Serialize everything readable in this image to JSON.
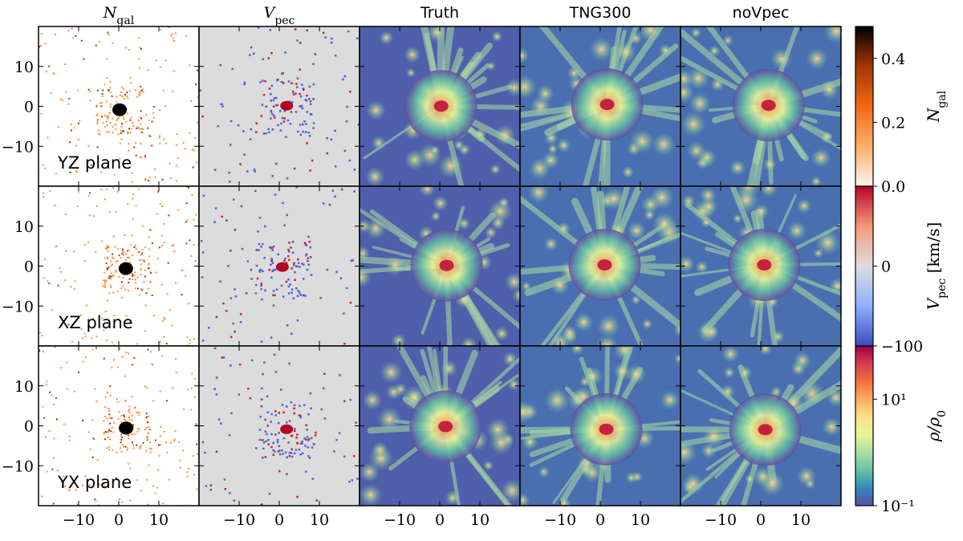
{
  "columns": [
    {
      "main": "N",
      "sub": "gal"
    },
    {
      "main": "V",
      "sub": "pec"
    },
    {
      "main": "Truth"
    },
    {
      "main": "TNG300"
    },
    {
      "main": "noVpec"
    }
  ],
  "rows": [
    "YZ plane",
    "XZ plane",
    "YX plane"
  ],
  "xlim": [
    -20,
    20
  ],
  "ylim": [
    -20,
    20
  ],
  "xticks": [
    {
      "value": -10,
      "label": "−10"
    },
    0,
    10
  ],
  "yticks": [
    {
      "value": -10,
      "label": "−10"
    },
    0,
    10
  ],
  "colorbars": [
    {
      "label": {
        "main": "N",
        "sub": "gal"
      },
      "lim": [
        0,
        0.5
      ],
      "log": false,
      "ticks": [
        {
          "value": 0,
          "label": "0.0"
        },
        {
          "value": 0.2,
          "label": "0.2"
        },
        {
          "value": 0.4,
          "label": "0.4"
        }
      ],
      "colors": [
        "#fff5eb",
        "#fdae6b",
        "#f16913",
        "#a63603",
        "#000000"
      ]
    },
    {
      "label": {
        "main": "V",
        "sub": "pec",
        "suffix": " [km/s]"
      },
      "lim": [
        -100,
        100
      ],
      "log": false,
      "ticks": [
        {
          "value": -100,
          "label": "−100"
        },
        0
      ],
      "colors": [
        "#3b4cc0",
        "#8db0fe",
        "#dddddd",
        "#f49a7b",
        "#b40426"
      ]
    },
    {
      "label": {
        "main": "ρ/ρ",
        "sub": "0"
      },
      "lim": [
        0.1,
        100
      ],
      "log": true,
      "ticks": [
        {
          "value": 0.1,
          "label": "10⁻¹"
        },
        {
          "value": 10,
          "label": "10¹"
        }
      ],
      "colors": [
        "#5e4fa2",
        "#3288bd",
        "#66c2a5",
        "#abdda4",
        "#e6f598",
        "#fee08b",
        "#fdae61",
        "#f46d43",
        "#d53e4f",
        "#9e0142"
      ]
    }
  ]
}
